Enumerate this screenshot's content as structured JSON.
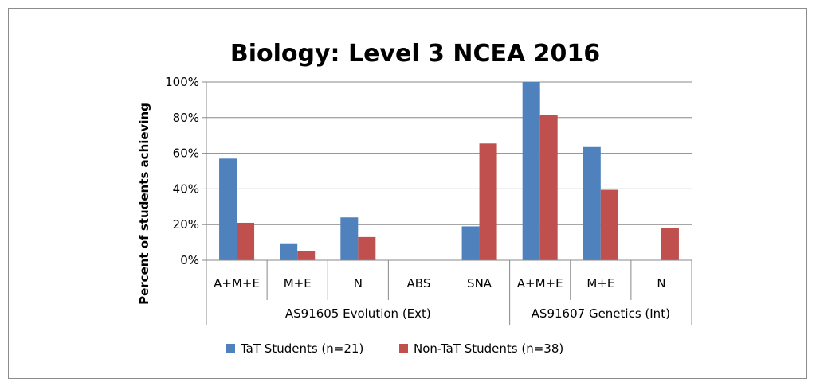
{
  "chart_data": {
    "type": "bar",
    "title": "Biology: Level 3 NCEA 2016",
    "ylabel": "Percent of students achieving",
    "ylim": [
      0,
      100
    ],
    "yticks": [
      "0%",
      "20%",
      "40%",
      "60%",
      "80%",
      "100%"
    ],
    "ytick_values": [
      0,
      20,
      40,
      60,
      80,
      100
    ],
    "categories": [
      "A+M+E",
      "M+E",
      "N",
      "ABS",
      "SNA",
      "A+M+E",
      "M+E",
      "N"
    ],
    "groups": [
      {
        "label": "AS91605 Evolution (Ext)",
        "count": 5
      },
      {
        "label": "AS91607 Genetics (Int)",
        "count": 3
      }
    ],
    "series": [
      {
        "name": "TaT Students (n=21)",
        "color": "#4f81bd",
        "values": [
          57,
          9.5,
          24,
          0,
          19,
          100,
          63.5,
          0
        ]
      },
      {
        "name": "Non-TaT Students (n=38)",
        "color": "#c0504d",
        "values": [
          21,
          5,
          13,
          0,
          65.5,
          81.5,
          39.5,
          18
        ]
      }
    ],
    "grid": true,
    "legend": "bottom"
  }
}
